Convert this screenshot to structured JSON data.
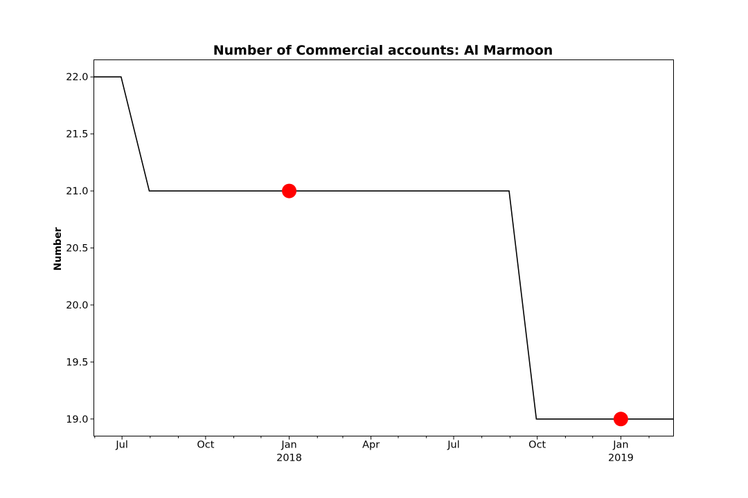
{
  "chart_data": {
    "type": "line",
    "title": "Number of Commercial accounts: Al Marmoon",
    "xlabel": "",
    "ylabel": "Number",
    "xlim": [
      "2017-05-31",
      "2019-02-28"
    ],
    "ylim": [
      18.85,
      22.15
    ],
    "yticks": [
      19.0,
      19.5,
      20.0,
      20.5,
      21.0,
      21.5,
      22.0
    ],
    "ytick_labels": [
      "19.0",
      "19.5",
      "20.0",
      "20.5",
      "21.0",
      "21.5",
      "22.0"
    ],
    "xticks_major": [
      {
        "date": "2017-07-01",
        "label": "Jul",
        "sublabel": ""
      },
      {
        "date": "2017-10-01",
        "label": "Oct",
        "sublabel": ""
      },
      {
        "date": "2018-01-01",
        "label": "Jan",
        "sublabel": "2018"
      },
      {
        "date": "2018-04-01",
        "label": "Apr",
        "sublabel": ""
      },
      {
        "date": "2018-07-01",
        "label": "Jul",
        "sublabel": ""
      },
      {
        "date": "2018-10-01",
        "label": "Oct",
        "sublabel": ""
      },
      {
        "date": "2019-01-01",
        "label": "Jan",
        "sublabel": "2019"
      }
    ],
    "xticks_minor": [
      "2017-06-01",
      "2017-08-01",
      "2017-09-01",
      "2017-11-01",
      "2017-12-01",
      "2018-02-01",
      "2018-03-01",
      "2018-05-01",
      "2018-06-01",
      "2018-08-01",
      "2018-09-01",
      "2018-11-01",
      "2018-12-01",
      "2019-02-01"
    ],
    "series": [
      {
        "color": "#000000",
        "x": [
          "2017-05-31",
          "2017-06-30",
          "2017-07-31",
          "2018-08-31",
          "2018-09-30",
          "2019-02-28"
        ],
        "y": [
          22,
          22,
          21,
          21,
          19,
          19
        ]
      }
    ],
    "markers": {
      "color": "#ff0000",
      "x": [
        "2018-01-01",
        "2019-01-01"
      ],
      "y": [
        21,
        19
      ]
    },
    "grid": false,
    "legend": false
  }
}
